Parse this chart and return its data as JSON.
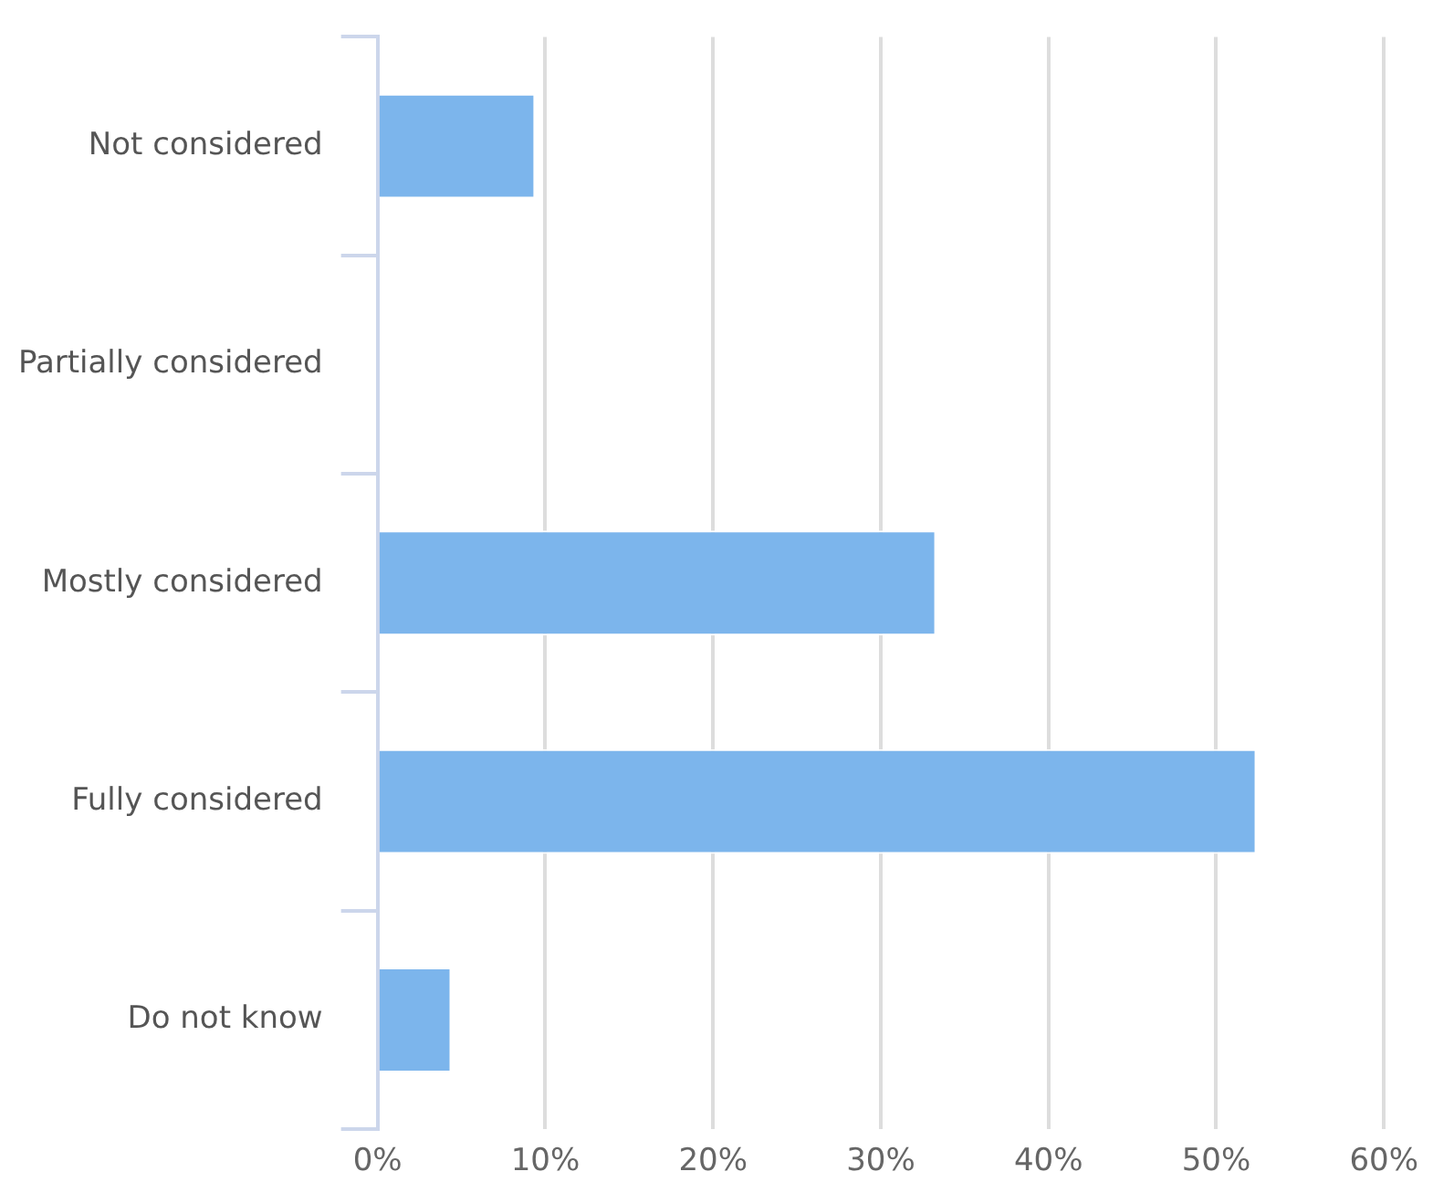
{
  "chart_data": {
    "type": "bar",
    "orientation": "horizontal",
    "categories": [
      "Not considered",
      "Partially considered",
      "Mostly considered",
      "Fully considered",
      "Do not know"
    ],
    "values": [
      9.4,
      0,
      33.3,
      52.4,
      4.4
    ],
    "color": "#7cb5ec",
    "xlim": [
      0,
      60
    ],
    "xticks": [
      {
        "value": 0,
        "label": "0%"
      },
      {
        "value": 10,
        "label": "10%"
      },
      {
        "value": 20,
        "label": "20%"
      },
      {
        "value": 30,
        "label": "30%"
      },
      {
        "value": 40,
        "label": "40%"
      },
      {
        "value": 50,
        "label": "50%"
      },
      {
        "value": 60,
        "label": "60%"
      }
    ],
    "grid": "x",
    "legend": false
  }
}
